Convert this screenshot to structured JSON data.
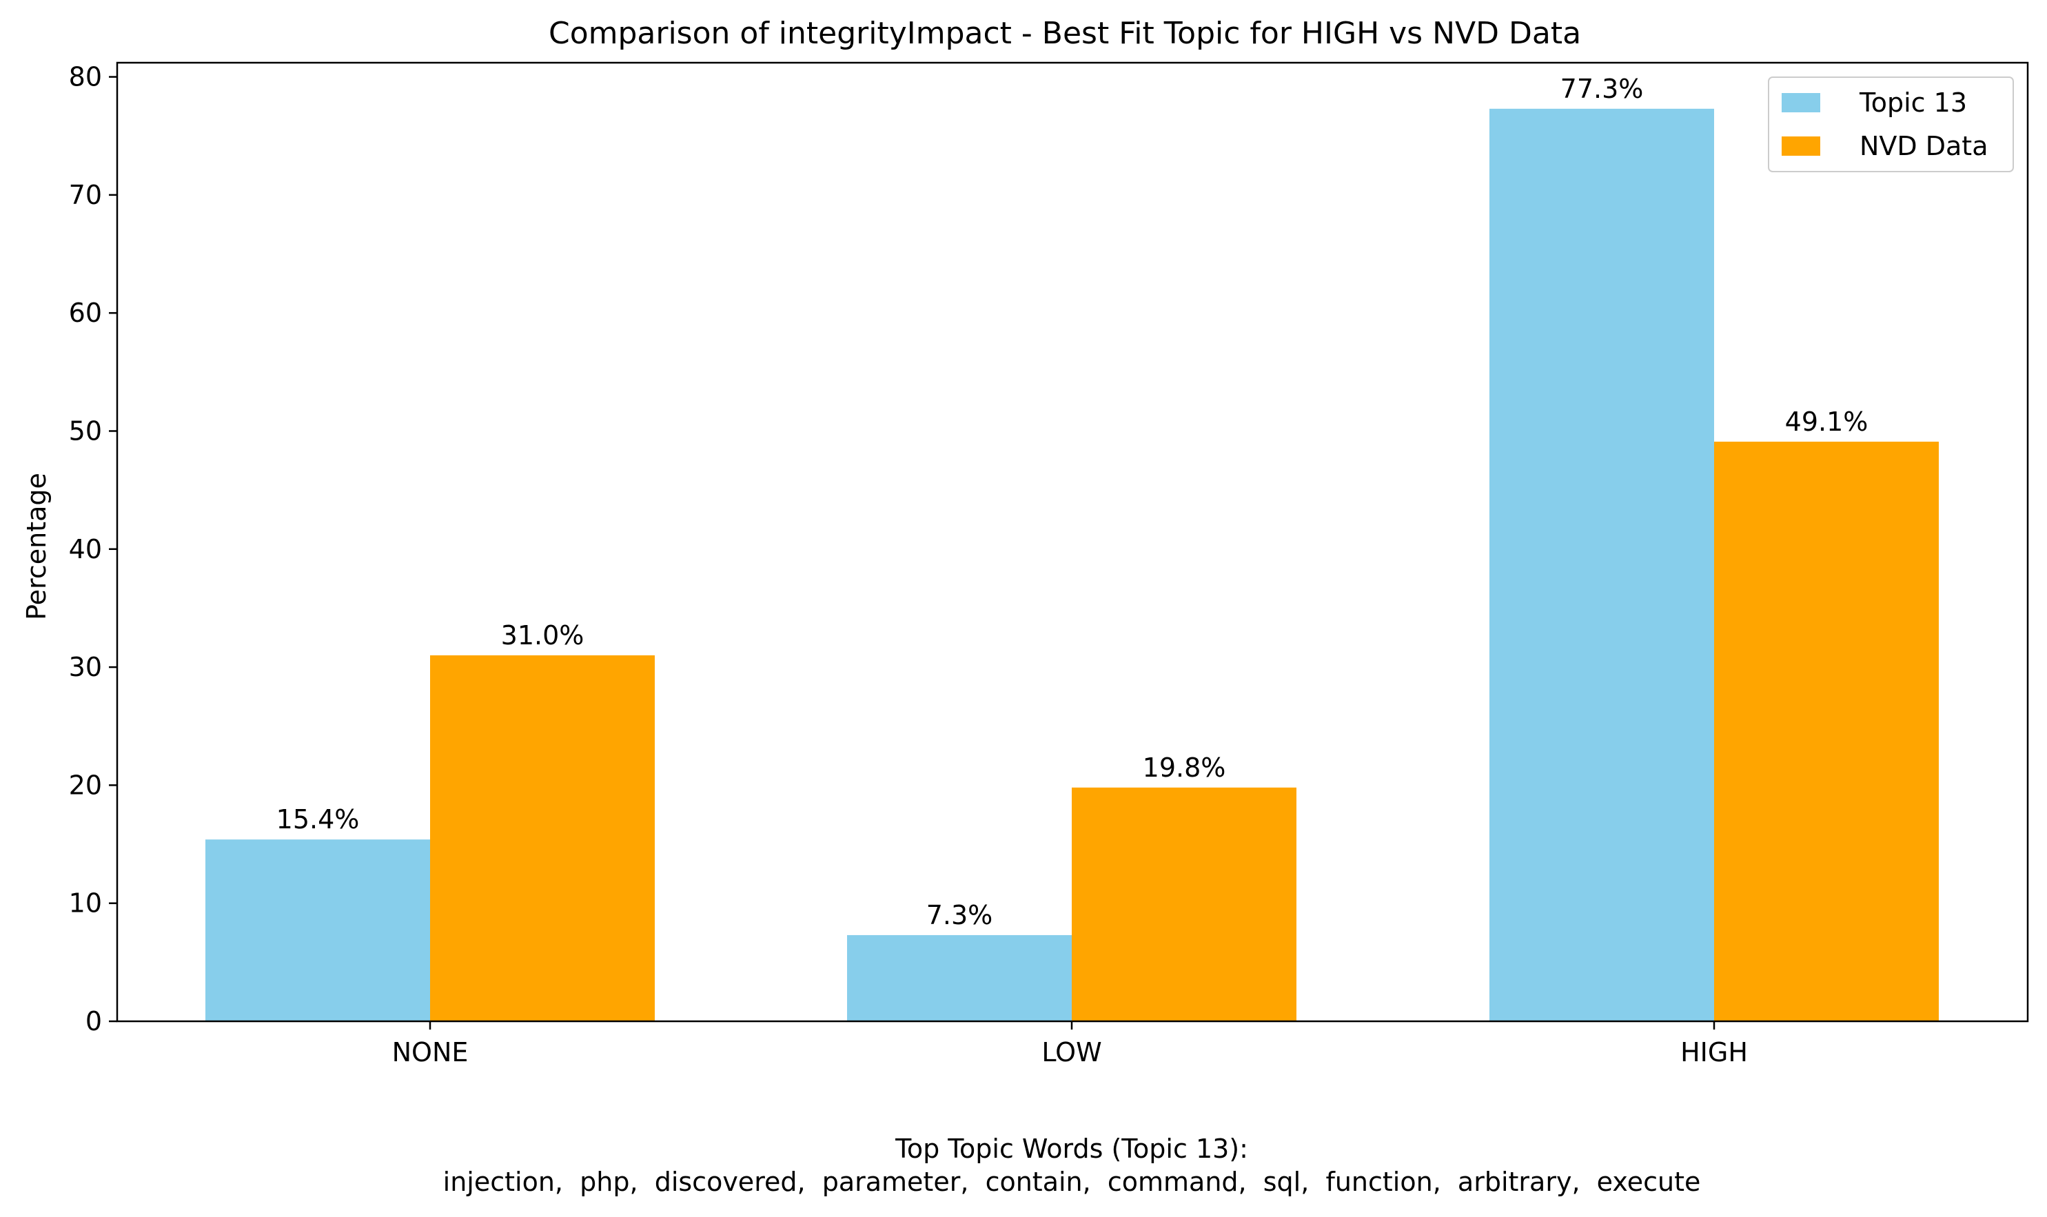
{
  "chart_data": {
    "type": "bar",
    "title": "Comparison of integrityImpact - Best Fit Topic for HIGH vs NVD Data",
    "xlabel": "",
    "ylabel": "Percentage",
    "categories": [
      "NONE",
      "LOW",
      "HIGH"
    ],
    "series": [
      {
        "name": "Topic 13",
        "color": "#87ceeb",
        "values": [
          15.4,
          7.3,
          77.3
        ],
        "labels": [
          "15.4%",
          "7.3%",
          "77.3%"
        ]
      },
      {
        "name": "NVD Data",
        "color": "#ffa500",
        "values": [
          31.0,
          19.8,
          49.1
        ],
        "labels": [
          "31.0%",
          "19.8%",
          "49.1%"
        ]
      }
    ],
    "ylim": [
      0,
      81.2
    ],
    "yticks": [
      0,
      10,
      20,
      30,
      40,
      50,
      60,
      70,
      80
    ],
    "grid": false,
    "legend_position": "top-right",
    "footnote": {
      "heading": "Top Topic Words (Topic 13):",
      "words": "injection,  php,  discovered,  parameter,  contain,  command,  sql,  function,  arbitrary,  execute"
    }
  }
}
